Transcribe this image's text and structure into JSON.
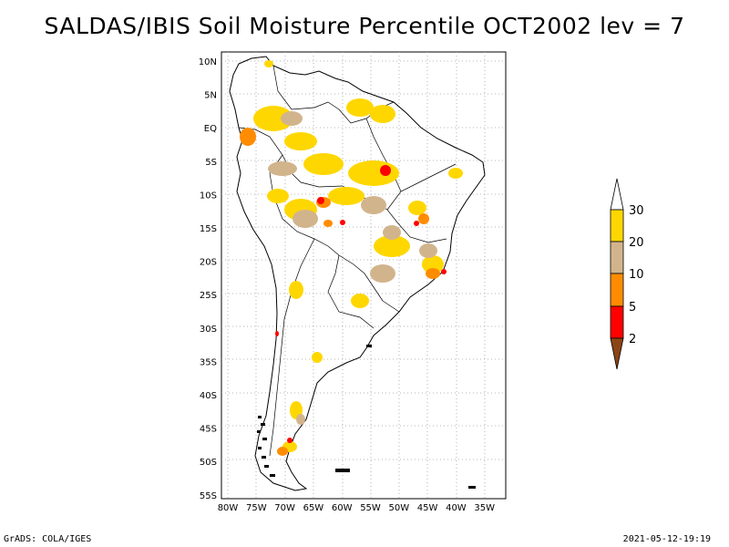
{
  "title": "SALDAS/IBIS Soil Moisture Percentile OCT2002 lev = 7",
  "footer_left": "GrADS: COLA/IGES",
  "footer_right": "2021-05-12-19:19",
  "lat_labels": [
    "10N",
    "5N",
    "EQ",
    "5S",
    "10S",
    "15S",
    "20S",
    "25S",
    "30S",
    "35S",
    "40S",
    "45S",
    "50S",
    "55S"
  ],
  "lon_labels": [
    "80W",
    "75W",
    "70W",
    "65W",
    "60W",
    "55W",
    "50W",
    "45W",
    "40W",
    "35W"
  ],
  "colorbar": {
    "labels": [
      "30",
      "20",
      "10",
      "5",
      "2"
    ],
    "colors": [
      "#ffffff",
      "#ffd700",
      "#d2b48c",
      "#ff8c00",
      "#ff0000",
      "#8b4513"
    ]
  }
}
